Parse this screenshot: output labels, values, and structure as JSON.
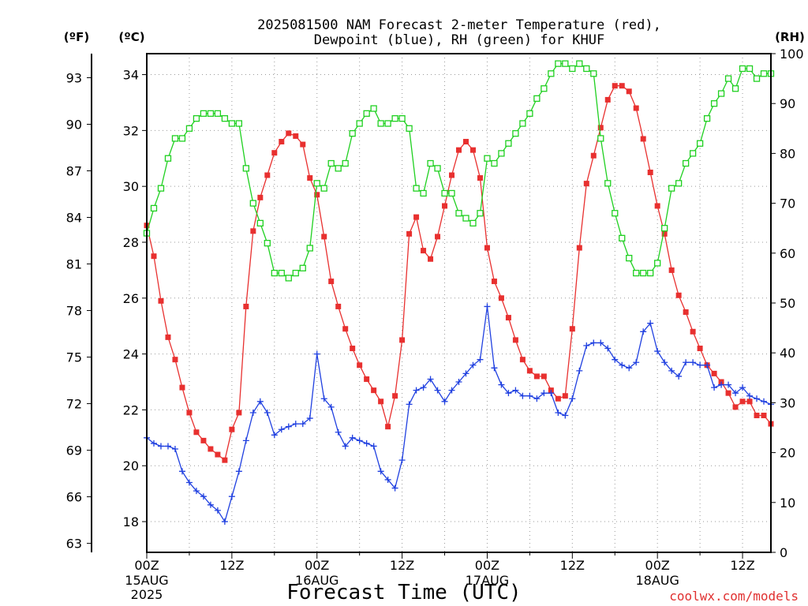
{
  "chart_data": {
    "type": "line",
    "title_line1": "2025081500 NAM Forecast 2-meter Temperature (red),",
    "title_line2": "Dewpoint (blue), RH (green) for KHUF",
    "xlabel": "Forecast Time (UTC)",
    "credit": "coolwx.com/models",
    "units": {
      "fahrenheit": "(ºF)",
      "celsius": "(ºC)",
      "rh": "(RH)"
    },
    "x_range_hours": [
      0,
      72
    ],
    "x_ticks": [
      {
        "hour": 0,
        "label": "00Z",
        "sub1": "15AUG",
        "sub2": "2025"
      },
      {
        "hour": 12,
        "label": "12Z",
        "sub1": "",
        "sub2": ""
      },
      {
        "hour": 24,
        "label": "00Z",
        "sub1": "16AUG",
        "sub2": ""
      },
      {
        "hour": 36,
        "label": "12Z",
        "sub1": "",
        "sub2": ""
      },
      {
        "hour": 48,
        "label": "00Z",
        "sub1": "17AUG",
        "sub2": ""
      },
      {
        "hour": 60,
        "label": "12Z",
        "sub1": "",
        "sub2": ""
      },
      {
        "hour": 72,
        "label": "00Z",
        "sub1": "18AUG",
        "sub2": ""
      },
      {
        "hour": 84,
        "label": "12Z",
        "sub1": "",
        "sub2": ""
      }
    ],
    "x_tick_hours": [
      0,
      12,
      24,
      36,
      48,
      60,
      72,
      84
    ],
    "y_celsius_range": [
      16.9,
      34.75
    ],
    "y_celsius_ticks": [
      18,
      20,
      22,
      24,
      26,
      28,
      30,
      32,
      34
    ],
    "y_fahrenheit_ticks": [
      63,
      66,
      69,
      72,
      75,
      78,
      81,
      84,
      87,
      90,
      93
    ],
    "y_rh_range": [
      0,
      100
    ],
    "y_rh_ticks": [
      0,
      10,
      20,
      30,
      40,
      50,
      60,
      70,
      80,
      90,
      100
    ],
    "hours": [
      0,
      1,
      2,
      3,
      4,
      5,
      6,
      7,
      8,
      9,
      10,
      11,
      12,
      13,
      14,
      15,
      16,
      17,
      18,
      19,
      20,
      21,
      22,
      23,
      24,
      25,
      26,
      27,
      28,
      29,
      30,
      31,
      32,
      33,
      34,
      35,
      36,
      37,
      38,
      39,
      40,
      41,
      42,
      43,
      44,
      45,
      46,
      47,
      48,
      49,
      50,
      51,
      52,
      53,
      54,
      55,
      56,
      57,
      58,
      59,
      60,
      61,
      62,
      63,
      64,
      65,
      66,
      67,
      68,
      69,
      70,
      71,
      72,
      73,
      74,
      75,
      76,
      77,
      78,
      79,
      80,
      81,
      82,
      83,
      84,
      85,
      86,
      87,
      88
    ],
    "series": [
      {
        "name": "2-meter Temperature",
        "axis": "celsius",
        "color": "#e8302f",
        "marker": "filled-square",
        "values": [
          28.6,
          27.5,
          25.9,
          24.6,
          23.8,
          22.8,
          21.9,
          21.2,
          20.9,
          20.6,
          20.4,
          20.2,
          21.3,
          21.9,
          25.7,
          28.4,
          29.6,
          30.4,
          31.2,
          31.6,
          31.9,
          31.8,
          31.5,
          30.3,
          29.7,
          28.2,
          26.6,
          25.7,
          24.9,
          24.2,
          23.6,
          23.1,
          22.7,
          22.3,
          21.4,
          22.5,
          24.5,
          28.3,
          28.9,
          27.7,
          27.4,
          28.2,
          29.3,
          30.4,
          31.3,
          31.6,
          31.3,
          30.3,
          27.8,
          26.6,
          26.0,
          25.3,
          24.5,
          23.8,
          23.4,
          23.2,
          23.2,
          22.7,
          22.4,
          22.5,
          24.9,
          27.8,
          30.1,
          31.1,
          32.1,
          33.1,
          33.6,
          33.6,
          33.4,
          32.8,
          31.7,
          30.5,
          29.3,
          28.3,
          27.0,
          26.1,
          25.5,
          24.8,
          24.2,
          23.6,
          23.3,
          23.0,
          22.6,
          22.1,
          22.3,
          22.3,
          21.8,
          21.8,
          21.5
        ]
      },
      {
        "name": "Dewpoint",
        "axis": "celsius",
        "color": "#2040e0",
        "marker": "plus",
        "values": [
          21.0,
          20.8,
          20.7,
          20.7,
          20.6,
          19.8,
          19.4,
          19.1,
          18.9,
          18.6,
          18.4,
          18.0,
          18.9,
          19.8,
          20.9,
          21.9,
          22.3,
          21.9,
          21.1,
          21.3,
          21.4,
          21.5,
          21.5,
          21.7,
          24.0,
          22.4,
          22.1,
          21.2,
          20.7,
          21.0,
          20.9,
          20.8,
          20.7,
          19.8,
          19.5,
          19.2,
          20.2,
          22.2,
          22.7,
          22.8,
          23.1,
          22.7,
          22.3,
          22.7,
          23.0,
          23.3,
          23.6,
          23.8,
          25.7,
          23.5,
          22.9,
          22.6,
          22.7,
          22.5,
          22.5,
          22.4,
          22.6,
          22.6,
          21.9,
          21.8,
          22.4,
          23.4,
          24.3,
          24.4,
          24.4,
          24.2,
          23.8,
          23.6,
          23.5,
          23.7,
          24.8,
          25.1,
          24.1,
          23.7,
          23.4,
          23.2,
          23.7,
          23.7,
          23.6,
          23.6,
          22.8,
          22.9,
          22.9,
          22.6,
          22.8,
          22.5,
          22.4,
          22.3,
          22.2
        ]
      },
      {
        "name": "RH",
        "axis": "rh",
        "color": "#1fd020",
        "marker": "open-square",
        "values": [
          64,
          69,
          73,
          79,
          83,
          83,
          85,
          87,
          88,
          88,
          88,
          87,
          86,
          86,
          77,
          70,
          66,
          62,
          56,
          56,
          55,
          56,
          57,
          61,
          74,
          73,
          78,
          77,
          78,
          84,
          86,
          88,
          89,
          86,
          86,
          87,
          87,
          85,
          73,
          72,
          78,
          77,
          72,
          72,
          68,
          67,
          66,
          68,
          79,
          78,
          80,
          82,
          84,
          86,
          88,
          91,
          93,
          96,
          98,
          98,
          97,
          98,
          97,
          96,
          83,
          74,
          68,
          63,
          59,
          56,
          56,
          56,
          58,
          65,
          73,
          74,
          78,
          80,
          82,
          87,
          90,
          92,
          95,
          93,
          97,
          97,
          95,
          96,
          96
        ]
      }
    ]
  }
}
